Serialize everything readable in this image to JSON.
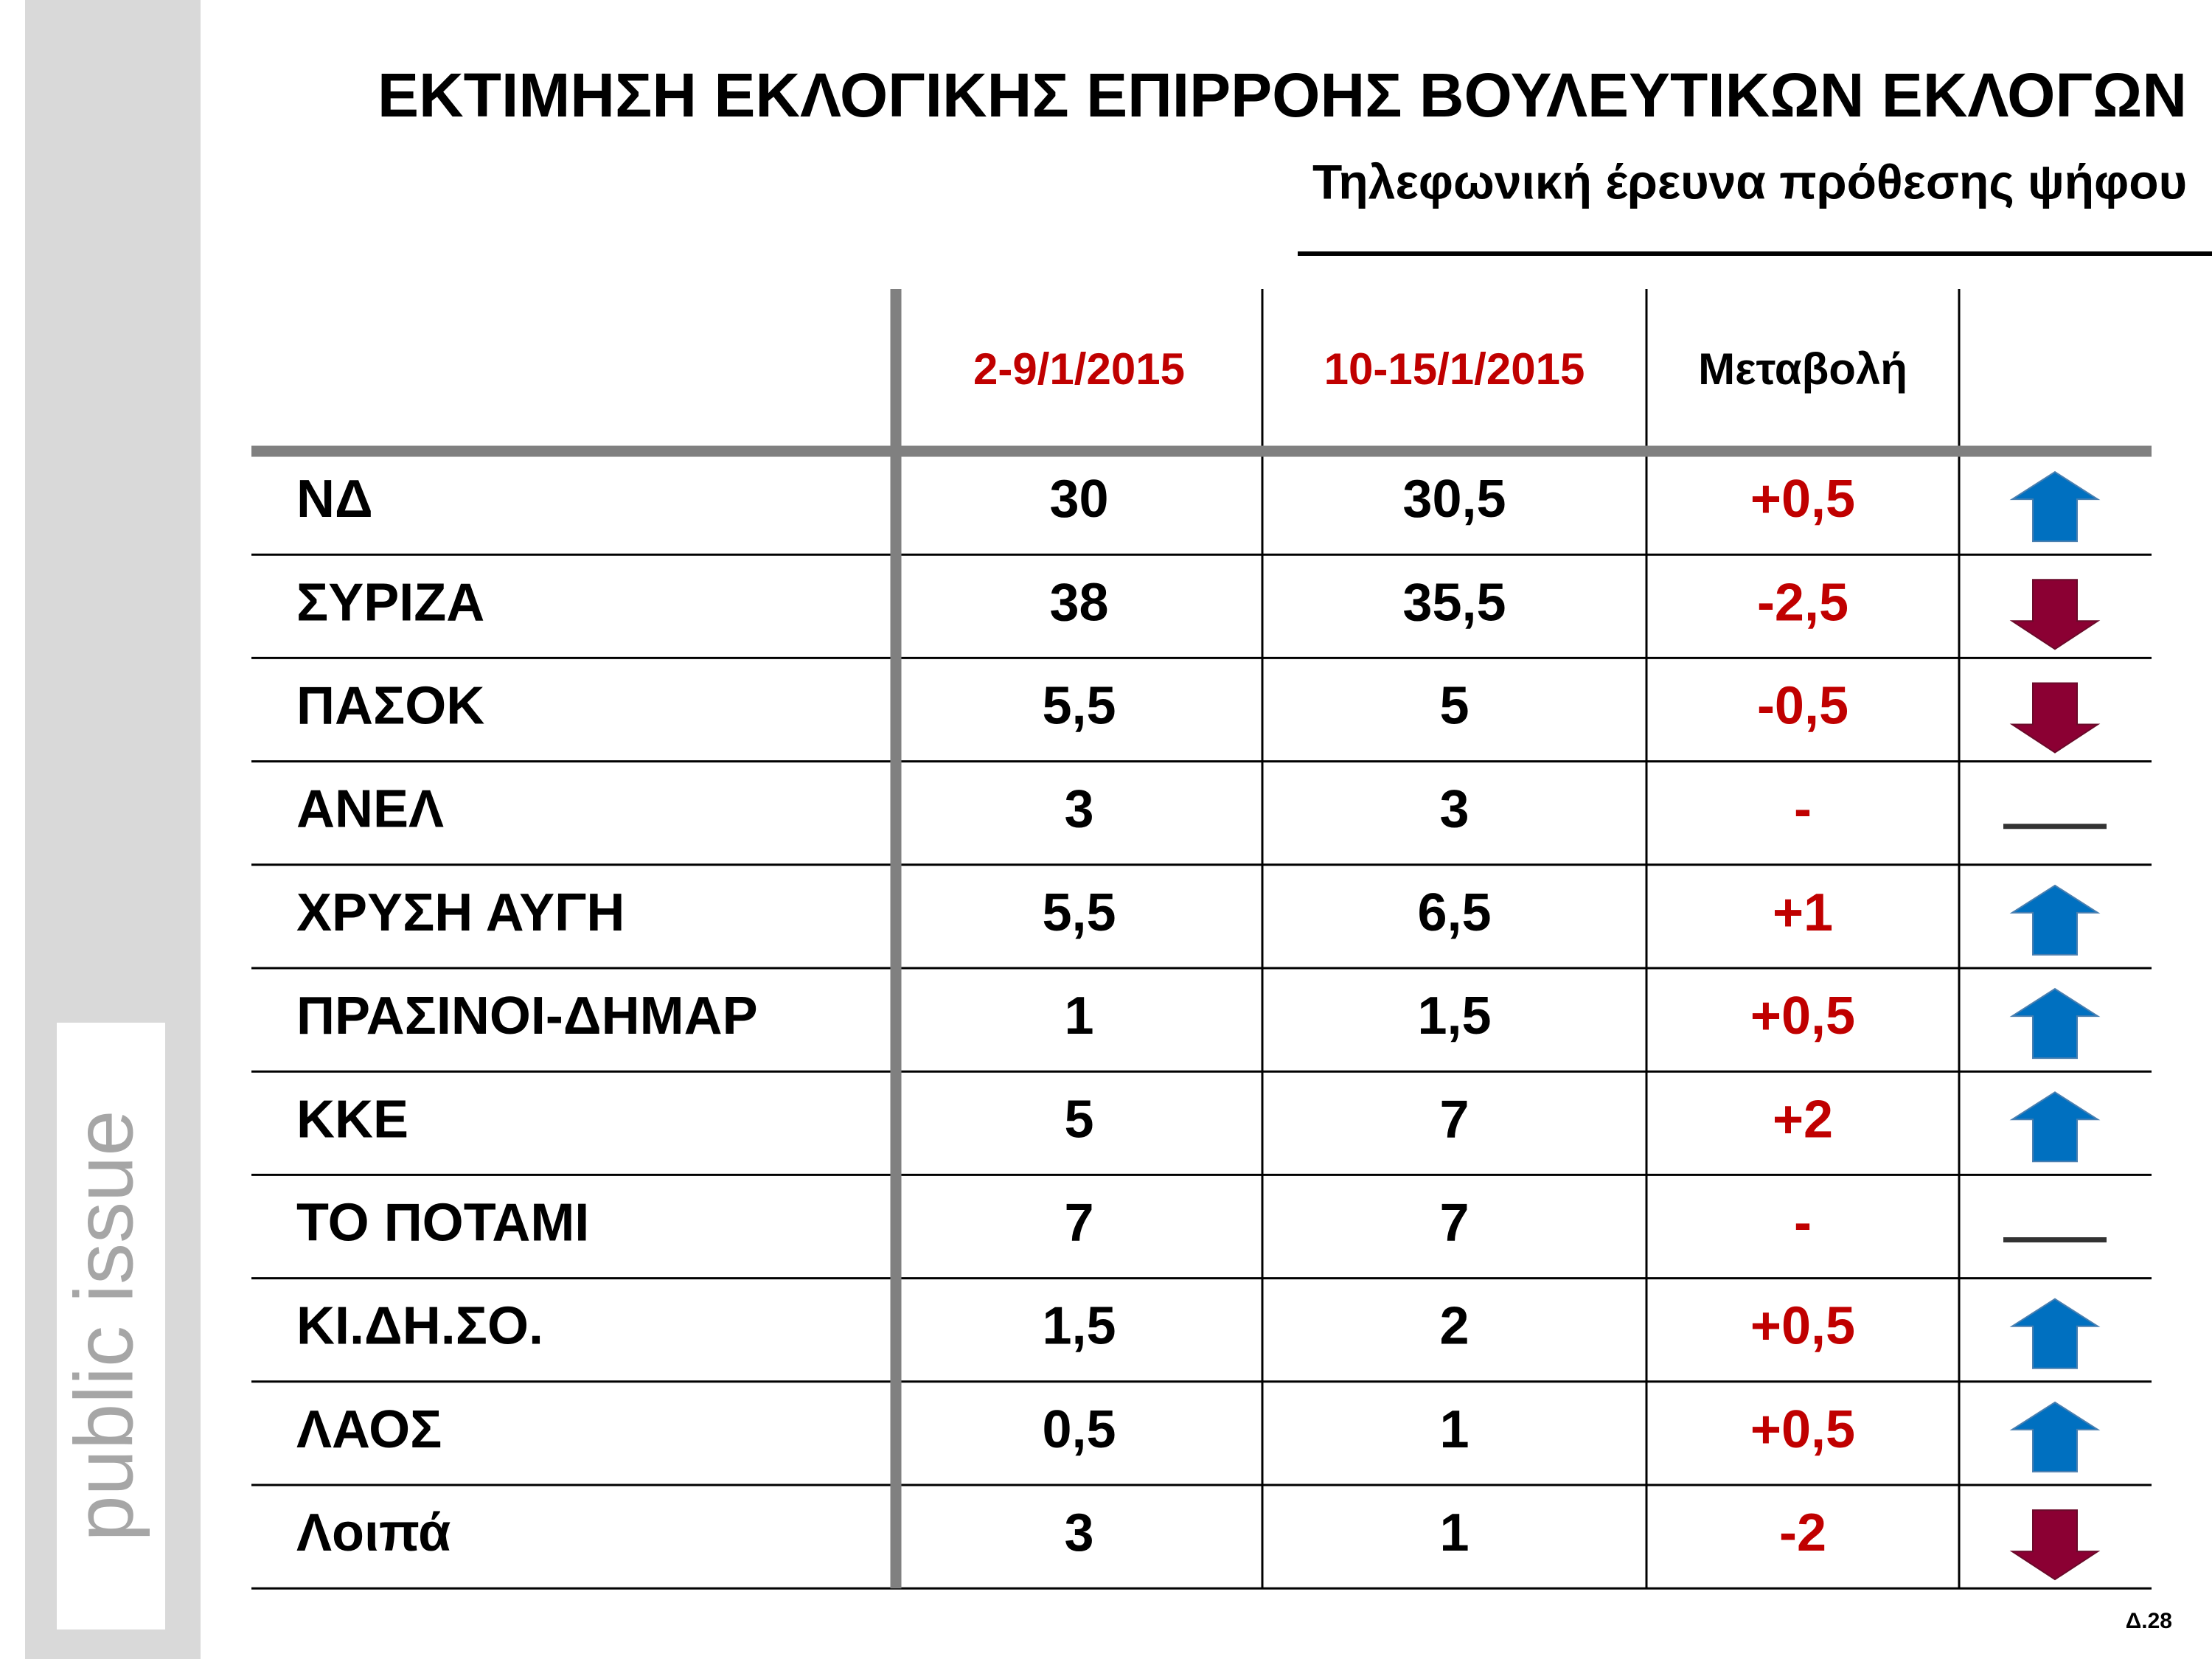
{
  "header": {
    "title": "ΕΚΤΙΜΗΣΗ ΕΚΛΟΓΙΚΗΣ ΕΠΙΡΡΟΗΣ ΒΟΥΛΕΥΤΙΚΩΝ ΕΚΛΟΓΩΝ",
    "subtitle": "Τηλεφωνική έρευνα πρόθεσης ψήφου"
  },
  "logo": "public issue",
  "table": {
    "columns": [
      "2-9/1/2015",
      "10-15/1/2015",
      "Μεταβολή"
    ],
    "rows": [
      [
        "ΝΔ",
        "30",
        "30,5",
        "+0,5"
      ],
      [
        "ΣΥΡΙΖΑ",
        "38",
        "35,5",
        "-2,5"
      ],
      [
        "ΠΑΣΟΚ",
        "5,5",
        "5",
        "-0,5"
      ],
      [
        "ΑΝΕΛ",
        "3",
        "3",
        "-"
      ],
      [
        "ΧΡΥΣΗ ΑΥΓΗ",
        "5,5",
        "6,5",
        "+1"
      ],
      [
        "ΠΡΑΣΙΝΟΙ-ΔΗΜΑΡ",
        "1",
        "1,5",
        "+0,5"
      ],
      [
        "ΚΚΕ",
        "5",
        "7",
        "+2"
      ],
      [
        "ΤΟ ΠΟΤΑΜΙ",
        "7",
        "7",
        "-"
      ],
      [
        "ΚΙ.ΔΗ.ΣΟ.",
        "1,5",
        "2",
        "+0,5"
      ],
      [
        "ΛΑΟΣ",
        "0,5",
        "1",
        "+0,5"
      ],
      [
        "Λοιπά",
        "3",
        "1",
        "-2"
      ]
    ]
  },
  "footer": "Δ.28"
}
